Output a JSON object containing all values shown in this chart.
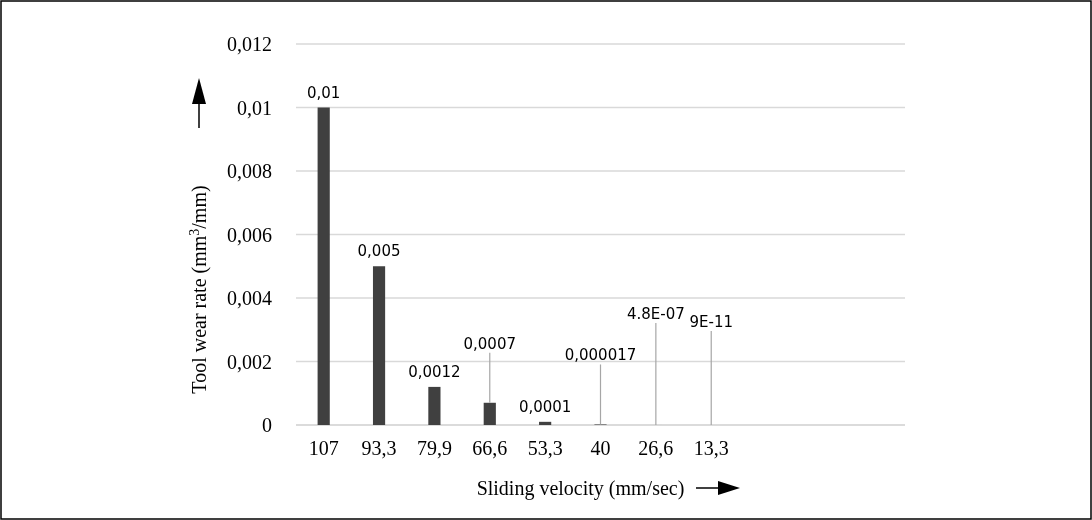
{
  "chart_data": {
    "type": "bar",
    "xlabel": "Sliding velocity (mm/sec)",
    "ylabel": "Tool wear rate (mm$^{3}$/mm)",
    "categories": [
      "107",
      "93,3",
      "79,9",
      "66,6",
      "53,3",
      "40",
      "26,6",
      "13,3",
      null,
      null,
      null
    ],
    "values": [
      0.01,
      0.005,
      0.0012,
      0.0007,
      0.0001,
      1.7e-05,
      4.8e-07,
      9e-11,
      null,
      null,
      null
    ],
    "value_labels": [
      "0,01",
      "0,005",
      "0,0012",
      "0,0007",
      "0,0001",
      "0,000017",
      "4.8E-07",
      "9E-11",
      null,
      null,
      null
    ],
    "color": "#404040",
    "ylim": [
      0,
      0.012
    ],
    "yticks": [
      {
        "value": 0,
        "label": "0"
      },
      {
        "value": 0.002,
        "label": "0,002"
      },
      {
        "value": 0.004,
        "label": "0,004"
      },
      {
        "value": 0.006,
        "label": "0,006"
      },
      {
        "value": 0.008,
        "label": "0,008"
      },
      {
        "value": 0.01,
        "label": "0,01"
      },
      {
        "value": 0.012,
        "label": "0,012"
      }
    ],
    "grid": "y"
  }
}
